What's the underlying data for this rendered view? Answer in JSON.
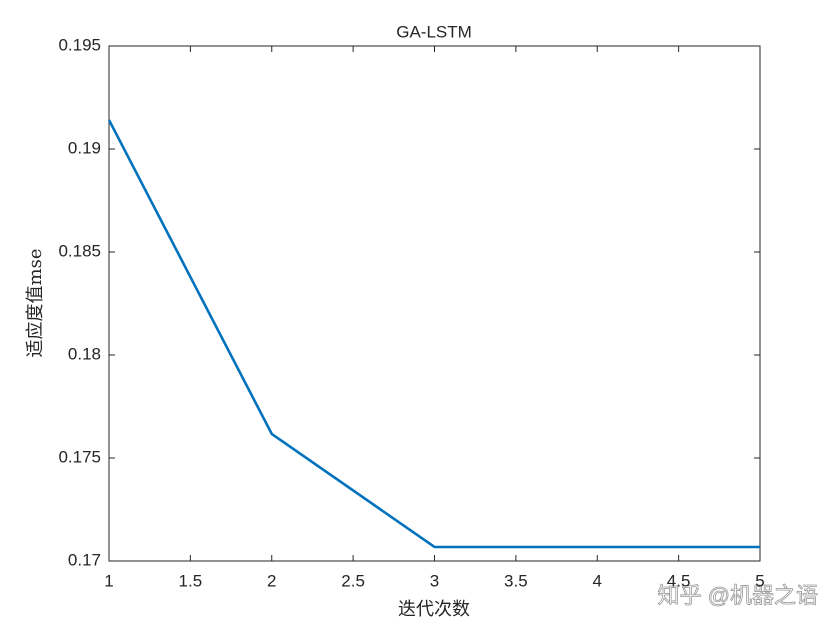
{
  "chart_data": {
    "type": "line",
    "title": "GA-LSTM",
    "x_label": "迭代次数",
    "y_label": "适应度值mse",
    "x": [
      1,
      2,
      3,
      4,
      5
    ],
    "values": [
      0.19141,
      0.17617,
      0.17068,
      0.17068,
      0.17068
    ],
    "color": "#0072bd",
    "xlim": [
      1,
      5
    ],
    "xticks": [
      1,
      1.5,
      2,
      2.5,
      3,
      3.5,
      4,
      4.5,
      5
    ],
    "ylim": [
      0.17,
      0.195
    ],
    "yticks": [
      0.17,
      0.175,
      0.18,
      0.185,
      0.19,
      0.195
    ],
    "grid": false,
    "watermark": "知乎 @机器之语"
  }
}
